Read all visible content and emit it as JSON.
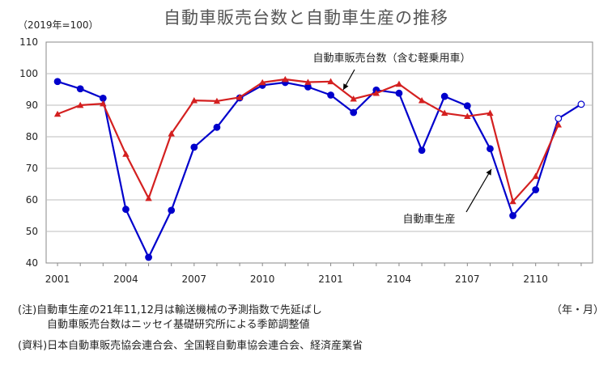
{
  "chart_data": {
    "type": "line",
    "title": "自動車販売台数と自動車生産の推移",
    "unit_label": "（2019年=100）",
    "x_unit_label": "（年・月）",
    "categories": [
      "2001",
      "2002",
      "2003",
      "2004",
      "2005",
      "2006",
      "2007",
      "2008",
      "2009",
      "2010",
      "2011",
      "2012",
      "2101",
      "2102",
      "2103",
      "2104",
      "2105",
      "2106",
      "2107",
      "2108",
      "2109",
      "2110",
      "2111",
      "2112"
    ],
    "x_tick_labels": [
      "2001",
      "2004",
      "2007",
      "2010",
      "2101",
      "2104",
      "2107",
      "2110"
    ],
    "ylim": [
      40,
      110
    ],
    "y_ticks": [
      40,
      50,
      60,
      70,
      80,
      90,
      100,
      110
    ],
    "grid": true,
    "series": [
      {
        "name": "自動車生産",
        "color": "#0000CC",
        "marker": "circle",
        "values": [
          97.5,
          95.2,
          92.2,
          57.0,
          41.8,
          56.7,
          76.7,
          83.0,
          92.3,
          96.3,
          97.2,
          95.8,
          93.2,
          87.7,
          94.8,
          93.8,
          75.7,
          92.8,
          89.8,
          76.2,
          55.0,
          63.2,
          85.8,
          90.3
        ],
        "forecast_from_index": 22,
        "label": "自動車生産"
      },
      {
        "name": "自動車販売台数（含む軽乗用車）",
        "color": "#D42020",
        "marker": "triangle",
        "values": [
          87.2,
          90.0,
          90.5,
          74.5,
          60.5,
          81.0,
          91.5,
          91.3,
          92.5,
          97.2,
          98.2,
          97.3,
          97.5,
          92.0,
          93.8,
          96.7,
          91.5,
          87.5,
          86.5,
          87.5,
          59.5,
          67.5,
          83.8,
          null
        ],
        "label": "自動車販売台数（含む軽乗用車）"
      }
    ]
  },
  "notes": [
    "(注)自動車生産の21年11,12月は輸送機械の予測指数で先延ばし",
    "自動車販売台数はニッセイ基礎研究所による季節調整値"
  ],
  "source": "(資料)日本自動車販売協会連合会、全国軽自動車協会連合会、経済産業省"
}
